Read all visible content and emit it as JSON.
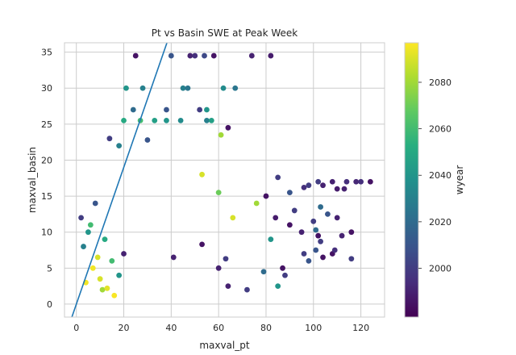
{
  "chart_data": {
    "type": "scatter",
    "title": "Pt vs Basin SWE at Peak Week",
    "xlabel": "maxval_pt",
    "ylabel": "maxval_basin",
    "xlim": [
      -5,
      130
    ],
    "ylim": [
      -1.8,
      36.3
    ],
    "xticks": [
      0,
      20,
      40,
      60,
      80,
      100,
      120
    ],
    "yticks": [
      0,
      5,
      10,
      15,
      20,
      25,
      30,
      35
    ],
    "grid": true,
    "colorbar": {
      "label": "wyear",
      "range": [
        1979,
        2097
      ],
      "ticks": [
        2000,
        2020,
        2040,
        2060,
        2080
      ],
      "colormap": "viridis"
    },
    "reference_line": {
      "slope": 0.95,
      "intercept": 0,
      "color": "#1f77b4"
    },
    "series": [
      {
        "color_value_field": "wyear",
        "points": [
          [
            25,
            34.5,
            1985
          ],
          [
            40,
            34.5,
            2010
          ],
          [
            48,
            34.5,
            1990
          ],
          [
            50,
            34.5,
            1995
          ],
          [
            54,
            34.5,
            2005
          ],
          [
            58,
            34.5,
            1985
          ],
          [
            74,
            34.5,
            1990
          ],
          [
            82,
            34.5,
            1988
          ],
          [
            21,
            30,
            2040
          ],
          [
            28,
            30,
            2030
          ],
          [
            45,
            30,
            2030
          ],
          [
            47,
            30,
            2025
          ],
          [
            62,
            30,
            2035
          ],
          [
            67,
            30,
            2025
          ],
          [
            20,
            25.5,
            2050
          ],
          [
            27,
            25.5,
            2060
          ],
          [
            33,
            25.5,
            2045
          ],
          [
            38,
            25.5,
            2040
          ],
          [
            44,
            25.5,
            2035
          ],
          [
            55,
            25.5,
            2030
          ],
          [
            57,
            25.5,
            2045
          ],
          [
            24,
            27,
            2020
          ],
          [
            38,
            27,
            2010
          ],
          [
            52,
            27,
            2000
          ],
          [
            55,
            27,
            2040
          ],
          [
            64,
            24.5,
            1985
          ],
          [
            14,
            23,
            2000
          ],
          [
            30,
            22.8,
            2010
          ],
          [
            18,
            22,
            2030
          ],
          [
            102,
            17,
            2000
          ],
          [
            108,
            17,
            1990
          ],
          [
            114,
            17,
            1995
          ],
          [
            118,
            17,
            1992
          ],
          [
            120,
            17,
            1995
          ],
          [
            124,
            17,
            1985
          ],
          [
            98,
            16.5,
            2000
          ],
          [
            104,
            16.5,
            1990
          ],
          [
            96,
            16.2,
            1995
          ],
          [
            110,
            16,
            1988
          ],
          [
            113,
            16,
            1990
          ],
          [
            85,
            17.6,
            2000
          ],
          [
            90,
            15.5,
            2010
          ],
          [
            80,
            15,
            1985
          ],
          [
            92,
            13,
            2000
          ],
          [
            103,
            13.5,
            2020
          ],
          [
            106,
            12.5,
            2010
          ],
          [
            110,
            12,
            1990
          ],
          [
            100,
            11.5,
            2000
          ],
          [
            101,
            10.3,
            2020
          ],
          [
            116,
            10,
            1985
          ],
          [
            102,
            9.5,
            1985
          ],
          [
            112,
            9.5,
            1990
          ],
          [
            103,
            8.7,
            2000
          ],
          [
            101,
            7.5,
            2010
          ],
          [
            104,
            6.5,
            1985
          ],
          [
            116,
            6.3,
            2000
          ],
          [
            108,
            7,
            1985
          ],
          [
            109,
            7.5,
            1995
          ],
          [
            90,
            11,
            1985
          ],
          [
            95,
            10,
            1990
          ],
          [
            84,
            12,
            1988
          ],
          [
            82,
            9,
            2040
          ],
          [
            96,
            7,
            2000
          ],
          [
            98,
            6,
            2010
          ],
          [
            53,
            8.3,
            1985
          ],
          [
            41,
            6.5,
            1990
          ],
          [
            63,
            6.3,
            2000
          ],
          [
            60,
            5,
            1990
          ],
          [
            79,
            4.5,
            2020
          ],
          [
            64,
            2.5,
            1990
          ],
          [
            72,
            2,
            2000
          ],
          [
            88,
            4,
            2000
          ],
          [
            87,
            5,
            1985
          ],
          [
            85,
            2.5,
            2040
          ],
          [
            61,
            23.5,
            2080
          ],
          [
            53,
            18,
            2090
          ],
          [
            60,
            15.5,
            2070
          ],
          [
            76,
            14,
            2080
          ],
          [
            66,
            12,
            2090
          ],
          [
            20,
            7,
            1990
          ],
          [
            18,
            4,
            2040
          ],
          [
            15,
            6,
            2060
          ],
          [
            12,
            9,
            2050
          ],
          [
            11,
            2,
            2080
          ],
          [
            3,
            8,
            2030
          ],
          [
            5,
            10,
            2040
          ],
          [
            2,
            12,
            2000
          ],
          [
            8,
            14,
            2010
          ],
          [
            6,
            11,
            2060
          ],
          [
            9,
            6.5,
            2090
          ],
          [
            4,
            3,
            2095
          ],
          [
            7,
            5,
            2095
          ],
          [
            10,
            3.5,
            2090
          ],
          [
            13,
            2.2,
            2092
          ],
          [
            16,
            1.2,
            2096
          ]
        ]
      }
    ]
  }
}
